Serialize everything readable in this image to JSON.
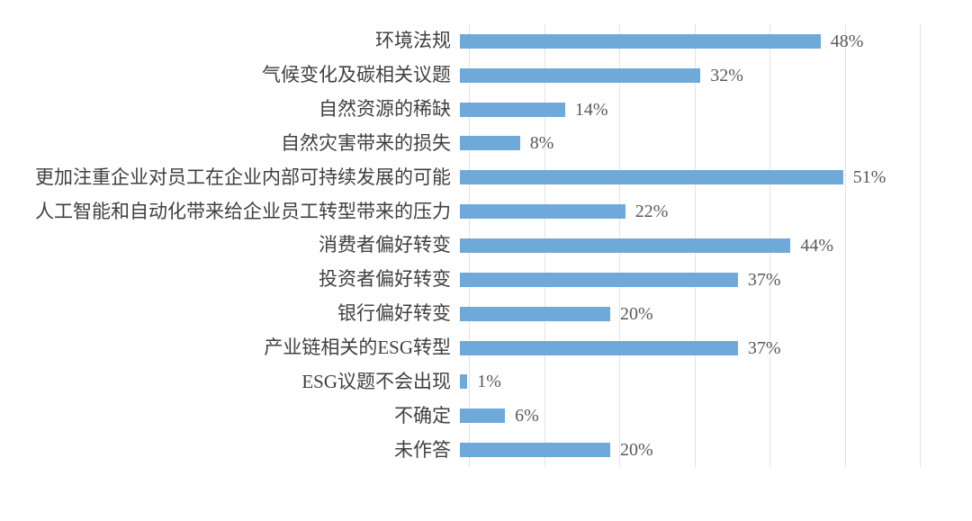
{
  "chart_data": {
    "type": "bar",
    "orientation": "horizontal",
    "title": "",
    "xlabel": "",
    "ylabel": "",
    "categories": [
      "环境法规",
      "气候变化及碳相关议题",
      "自然资源的稀缺",
      "自然灾害带来的损失",
      "更加注重企业对员工在企业内部可持续发展的可能",
      "人工智能和自动化带来给企业员工转型带来的压力",
      "消费者偏好转变",
      "投资者偏好转变",
      "银行偏好转变",
      "产业链相关的ESG转型",
      "ESG议题不会出现",
      "不确定",
      "未作答"
    ],
    "values": [
      48,
      32,
      14,
      8,
      51,
      22,
      44,
      37,
      20,
      37,
      1,
      6,
      20
    ],
    "value_labels": [
      "48%",
      "32%",
      "14%",
      "8%",
      "51%",
      "22%",
      "44%",
      "37%",
      "20%",
      "37%",
      "1%",
      "6%",
      "20%"
    ],
    "xlim": [
      0,
      60
    ],
    "grid_interval": 10,
    "grid": true,
    "legend": false,
    "axis_tick_labels_visible": false,
    "colors": {
      "bar": "#6fa9d9",
      "gridline": "#e2e2e2",
      "category_label": "#404040",
      "value_label": "#595959",
      "background": "#ffffff"
    }
  }
}
